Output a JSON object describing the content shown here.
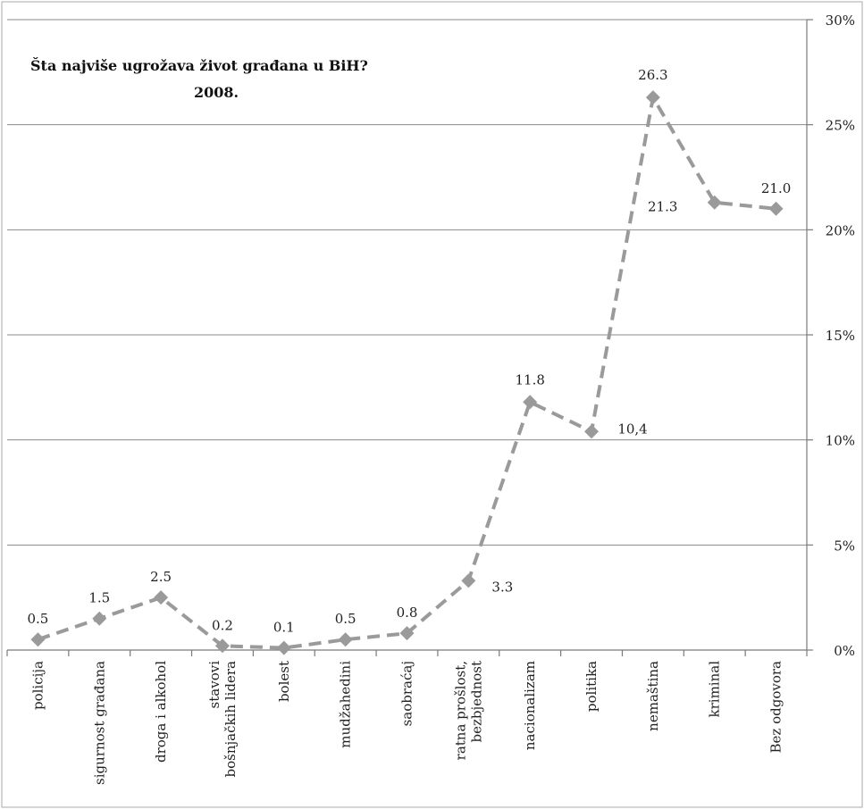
{
  "chart_data": {
    "type": "line",
    "title": "Šta najviše ugrožava život građana u BiH?",
    "subtitle": "2008.",
    "categories": [
      "policija",
      "sigurnost građana",
      "droga i alkohol",
      "stavovi|bošnjačkih lidera",
      "bolest",
      "mudžahedini",
      "saobraćaj",
      "ratna prošlost,|bezbjednost",
      "nacionalizam",
      "politika",
      "nemaština",
      "kriminal",
      "Bez odgovora"
    ],
    "values": [
      0.5,
      1.5,
      2.5,
      0.2,
      0.1,
      0.5,
      0.8,
      3.3,
      11.8,
      10.4,
      26.3,
      21.3,
      21.0
    ],
    "data_labels": [
      "0.5",
      "1.5",
      "2.5",
      "0.2",
      "0.1",
      "0.5",
      "0.8",
      "3.3",
      "11.8",
      "10,4",
      "26.3",
      "21.3",
      "21.0"
    ],
    "ylim": [
      0,
      30
    ],
    "y_ticks": [
      "0%",
      "5%",
      "10%",
      "15%",
      "20%",
      "25%",
      "30%"
    ],
    "y_axis_side": "right",
    "grid": true,
    "line_style": "dashed",
    "marker": "diamond",
    "series_color": "#9a9a9a"
  }
}
